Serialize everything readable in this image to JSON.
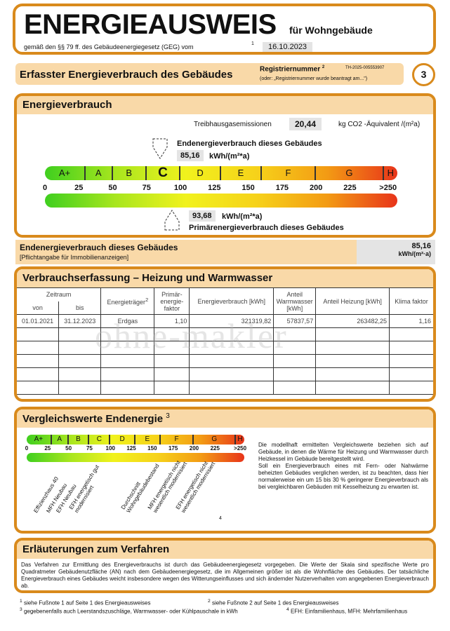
{
  "header": {
    "title": "ENERGIEAUSWEIS",
    "subtitle": "für Wohngebäude",
    "law": "gemäß den §§ 79 ff. des Gebäudeenergiegesetz (GEG) vom",
    "law_sup": "1",
    "date": "16.10.2023"
  },
  "banner": {
    "title": "Erfasster Energieverbrauch des Gebäudes",
    "reg_label": "Registriernummer",
    "reg_sup": "2",
    "reg_number": "TH-2025-005553907",
    "reg_note": "(oder: „Registriernummer wurde beantragt am...\")",
    "page": "3"
  },
  "energy": {
    "title": "Energieverbrauch",
    "ghg_label": "Treibhausgasemissionen",
    "ghg_value": "20,44",
    "ghg_unit": "kg CO2 -Äquivalent /(m²a)",
    "end_label": "Endenergieverbrauch dieses Gebäudes",
    "end_value": "85,16",
    "unit": "kWh/(m²*a)",
    "primary_value": "93,68",
    "primary_label": "Primärenergieverbrauch dieses Gebäudes",
    "classes": [
      "A+",
      "A",
      "B",
      "C",
      "D",
      "E",
      "F",
      "G",
      "H"
    ],
    "current_class": "C",
    "ticks": [
      "0",
      "25",
      "50",
      "75",
      "100",
      "125",
      "150",
      "175",
      "200",
      "225",
      ">250"
    ],
    "end_numeric": 85.16,
    "primary_numeric": 93.68
  },
  "end_row": {
    "label": "Endenergieverbrauch dieses Gebäudes",
    "note": "[Pflichtangabe für Immobilienanzeigen]",
    "value": "85,16",
    "unit": "kWh/(m²·a)"
  },
  "consumption": {
    "title": "Verbrauchserfassung – Heizung und Warmwasser",
    "headers": {
      "period": "Zeitraum",
      "from": "von",
      "to": "bis",
      "carrier": "Energieträger",
      "carrier_sup": "2",
      "pef": "Primär-energie-faktor",
      "use": "Energieverbrauch [kWh]",
      "ww": "Anteil Warmwasser [kWh]",
      "heat": "Anteil Heizung [kWh]",
      "klima": "Klima faktor"
    },
    "rows": [
      {
        "from": "01.01.2021",
        "to": "31.12.2023",
        "carrier": "Erdgas",
        "pef": "1,10",
        "use": "321319,82",
        "ww": "57837,57",
        "heat": "263482,25",
        "klima": "1,16"
      }
    ],
    "watermark": "ohne-makler"
  },
  "compare": {
    "title": "Vergleichswerte Endenergie",
    "title_sup": "3",
    "labels": [
      "Effizienzhaus 40",
      "MFH Neubau",
      "EFH Neubau",
      "EFH energetisch gut modernisiert",
      "Durchschnitt Wohngebäudebestand",
      "MFH energetisch nicht wesentlich modernisiert",
      "EFH energetisch nicht wesentlich modernisiert"
    ],
    "footnote_mark": "4",
    "text": "Die modellhaft ermittelten Vergleichswerte beziehen sich auf Gebäude, in denen die Wärme für Heizung und Warmwasser durch Heizkessel im Gebäude bereitgestellt wird.\nSoll ein Energieverbrauch eines mit Fern- oder Nahwärme beheizten Gebäudes verglichen werden, ist zu beachten, dass hier normalerweise ein um 15 bis 30 % geringerer Energieverbrauch als bei vergleichbaren Gebäuden mit Kesselheizung zu erwarten ist."
  },
  "explain": {
    "title": "Erläuterungen zum Verfahren",
    "text": "Das Verfahren zur Ermittlung des Energieverbrauchs ist durch das Gebäudeenergiegesetz vorgegeben. Die Werte der Skala sind spezifische Werte pro Quadratmeter Gebäudenutzfläche (AN) nach dem Gebäudeenergiegesetz, die im Allgemeinen größer ist als die Wohnfläche des Gebäudes. Der tatsächliche Energieverbrauch eines Gebäudes weicht insbesondere wegen des Witterungseinflusses und sich ändernder Nutzerverhalten vom angegebenen Energieverbrauch ab."
  },
  "footnotes": {
    "f1": "siehe Fußnote 1 auf Seite 1 des Energieausweises",
    "f2": "siehe Fußnote 2 auf Seite 1 des Energieausweises",
    "f3": "gegebenenfalls auch Leerstandszuschläge, Warmwasser- oder Kühlpauschale in kWh",
    "f4": "EFH: Einfamilienhaus, MFH: Mehrfamilienhaus"
  }
}
